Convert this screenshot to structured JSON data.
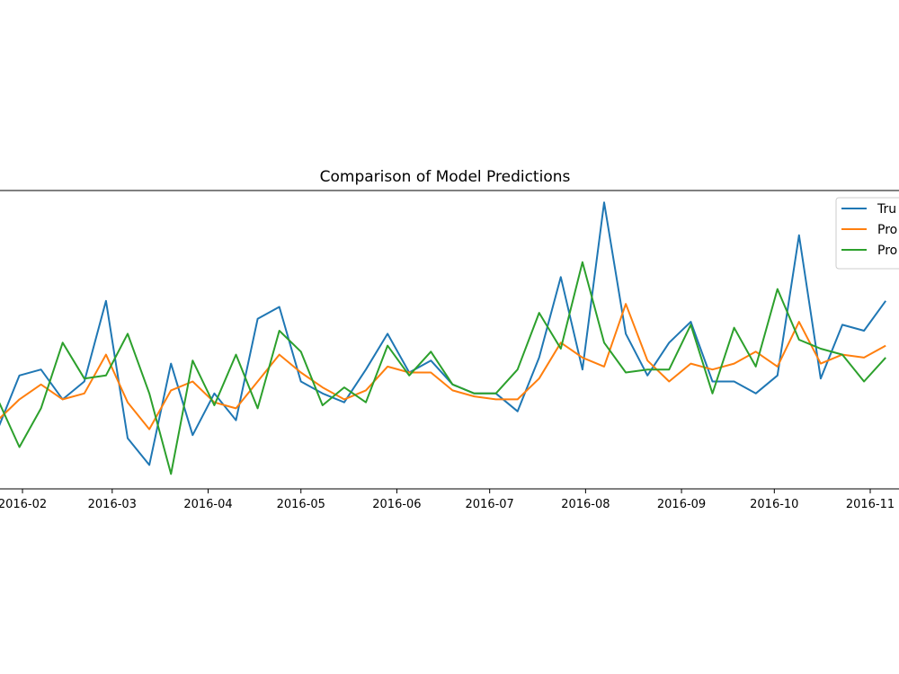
{
  "chart_data": {
    "type": "line",
    "title": "Comparison of Model Predictions",
    "xlabel": "",
    "ylabel": "",
    "grid": false,
    "legend_position": "top-right",
    "x_tick_labels": [
      "2016-02",
      "2016-03",
      "2016-04",
      "2016-05",
      "2016-06",
      "2016-07",
      "2016-08",
      "2016-09",
      "2016-10",
      "2016-11"
    ],
    "x_tick_dates": [
      "2016-02-01",
      "2016-03-01",
      "2016-04-01",
      "2016-05-01",
      "2016-06-01",
      "2016-07-01",
      "2016-08-01",
      "2016-09-01",
      "2016-10-01",
      "2016-11-01"
    ],
    "xlim": [
      "2016-01-24",
      "2016-11-11"
    ],
    "ylim": [
      0,
      100
    ],
    "x": [
      "2016-01-24",
      "2016-01-31",
      "2016-02-07",
      "2016-02-14",
      "2016-02-21",
      "2016-02-28",
      "2016-03-06",
      "2016-03-13",
      "2016-03-20",
      "2016-03-27",
      "2016-04-03",
      "2016-04-10",
      "2016-04-17",
      "2016-04-24",
      "2016-05-01",
      "2016-05-08",
      "2016-05-15",
      "2016-05-22",
      "2016-05-29",
      "2016-06-05",
      "2016-06-12",
      "2016-06-19",
      "2016-06-26",
      "2016-07-03",
      "2016-07-10",
      "2016-07-17",
      "2016-07-24",
      "2016-07-31",
      "2016-08-07",
      "2016-08-14",
      "2016-08-21",
      "2016-08-28",
      "2016-09-04",
      "2016-09-11",
      "2016-09-18",
      "2016-09-25",
      "2016-10-02",
      "2016-10-09",
      "2016-10-16",
      "2016-10-23",
      "2016-10-30",
      "2016-11-06"
    ],
    "series": [
      {
        "name": "Tru",
        "color": "#1f77b4",
        "values": [
          20,
          38,
          40,
          30,
          36,
          63,
          17,
          8,
          42,
          18,
          32,
          23,
          57,
          61,
          36,
          32,
          29,
          40,
          52,
          39,
          43,
          35,
          32,
          32,
          26,
          44,
          71,
          40,
          96,
          52,
          38,
          49,
          56,
          36,
          36,
          32,
          38,
          85,
          37,
          55,
          53,
          63
        ]
      },
      {
        "name": "Pro",
        "color": "#ff7f0e",
        "values": [
          23,
          30,
          35,
          30,
          32,
          45,
          29,
          20,
          33,
          36,
          29,
          27,
          36,
          45,
          39,
          34,
          30,
          33,
          41,
          39,
          39,
          33,
          31,
          30,
          30,
          37,
          49,
          44,
          41,
          62,
          43,
          36,
          42,
          40,
          42,
          46,
          41,
          56,
          42,
          45,
          44,
          48
        ]
      },
      {
        "name": "Pro",
        "color": "#2ca02c",
        "values": [
          30,
          14,
          27,
          49,
          37,
          38,
          52,
          32,
          5,
          43,
          28,
          45,
          27,
          53,
          46,
          28,
          34,
          29,
          48,
          38,
          46,
          35,
          32,
          32,
          40,
          59,
          47,
          76,
          49,
          39,
          40,
          40,
          55,
          32,
          54,
          41,
          67,
          50,
          47,
          45,
          36,
          44
        ]
      }
    ]
  }
}
